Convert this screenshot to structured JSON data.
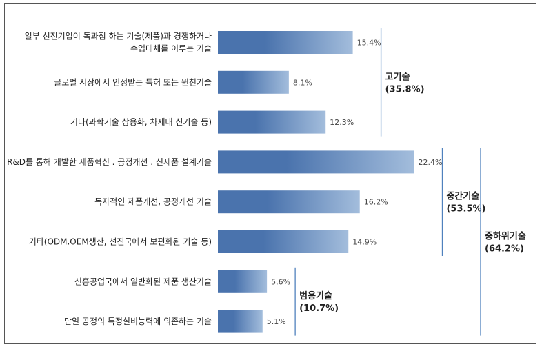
{
  "chart_data": {
    "type": "bar",
    "orientation": "horizontal",
    "categories": [
      [
        "일부 선진기업이 독과점 하는 기술(제품)과 경쟁하거나",
        "수입대체를 이루는 기술"
      ],
      [
        "글로벌 시장에서 인정받는 특허 또는 원천기술"
      ],
      [
        "기타(과학기술 상용화, 차세대 신기술 등)"
      ],
      [
        "R&D를 통해 개발한 제품혁신 . 공정개선 . 신제품 설계기술"
      ],
      [
        "독자적인 제품개선, 공정개선 기술"
      ],
      [
        "기타(ODM.OEM생산, 선진국에서 보편화된 기술 등)"
      ],
      [
        "신흥공업국에서 일반화된 제품 생산기술"
      ],
      [
        "단일 공정의 특정설비능력에 의존하는 기술"
      ]
    ],
    "values": [
      15.4,
      8.1,
      12.3,
      22.4,
      16.2,
      14.9,
      5.6,
      5.1
    ],
    "value_labels": [
      "15.4%",
      "8.1%",
      "12.3%",
      "22.4%",
      "16.2%",
      "14.9%",
      "5.6%",
      "5.1%"
    ],
    "bar_color": "#4a73ad",
    "bar_color_light": "#a3bddc",
    "groups": [
      {
        "label": "고기술",
        "share": "(35.8%)",
        "from": 0,
        "to": 2,
        "level": 1
      },
      {
        "label": "중간기술",
        "share": "(53.5%)",
        "from": 3,
        "to": 5,
        "level": 1
      },
      {
        "label": "범용기술",
        "share": "(10.7%)",
        "from": 6,
        "to": 7,
        "level": 1
      },
      {
        "label": "중하위기술",
        "share": "(64.2%)",
        "from": 3,
        "to": 7,
        "level": 2
      }
    ],
    "bracket_color": "#4f81bd"
  }
}
